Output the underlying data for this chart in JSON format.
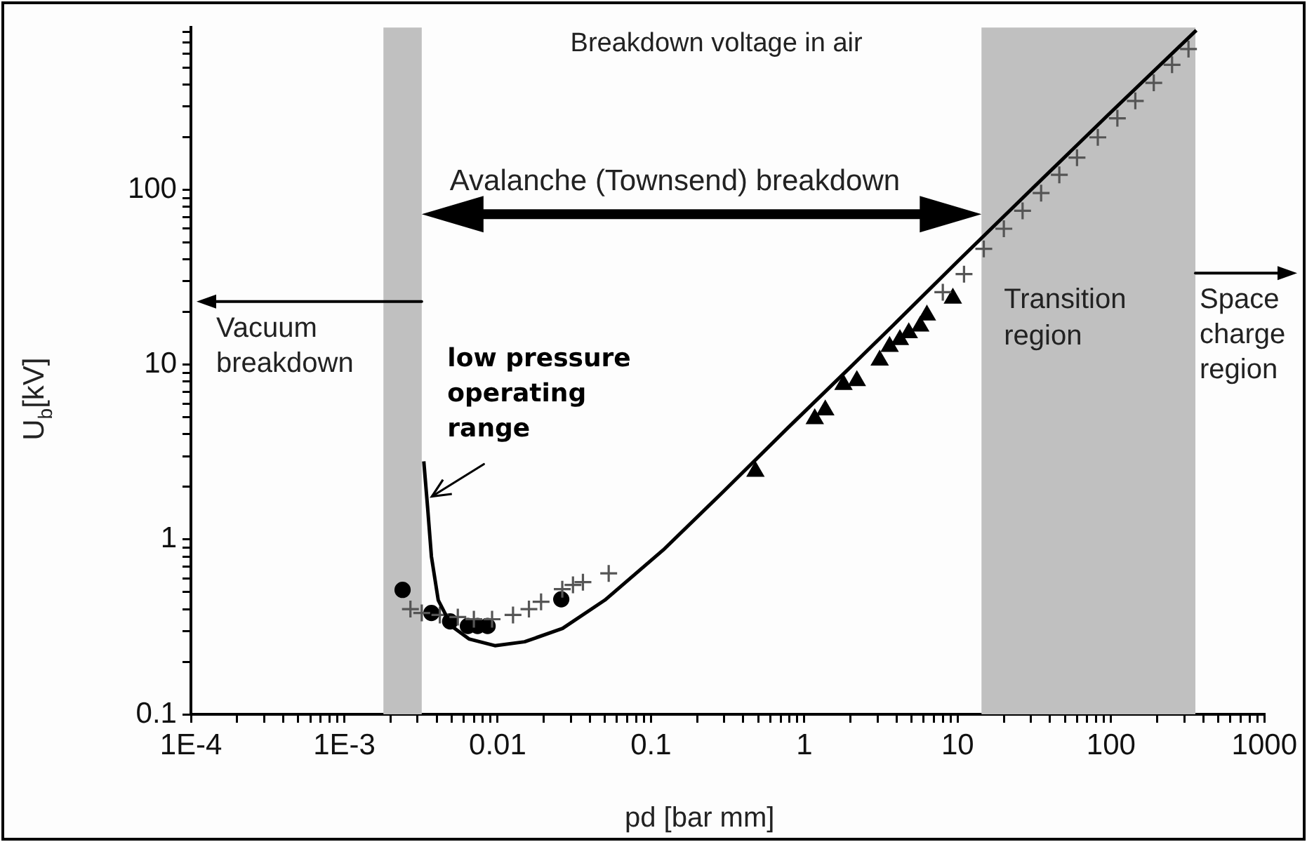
{
  "chart_data": {
    "type": "scatter",
    "title": "Breakdown voltage in air",
    "xlabel": "pd [bar mm]",
    "ylabel": "U$_{b}$[kV]",
    "log": "xy",
    "grid": false,
    "legend": false,
    "xlim": [
      0.0001,
      1000
    ],
    "ylim": [
      0.1,
      850
    ],
    "xticks": [
      {
        "value": 0.0001,
        "label": "1E-4"
      },
      {
        "value": 0.0002,
        "label": null
      },
      {
        "value": 0.0003,
        "label": null
      },
      {
        "value": 0.0004,
        "label": null
      },
      {
        "value": 0.0005,
        "label": null
      },
      {
        "value": 0.0006,
        "label": null
      },
      {
        "value": 0.0007,
        "label": null
      },
      {
        "value": 0.0008,
        "label": null
      },
      {
        "value": 0.0009,
        "label": null
      },
      {
        "value": 0.001,
        "label": "1E-3"
      },
      {
        "value": 0.002,
        "label": null
      },
      {
        "value": 0.003,
        "label": null
      },
      {
        "value": 0.004,
        "label": null
      },
      {
        "value": 0.005,
        "label": null
      },
      {
        "value": 0.006,
        "label": null
      },
      {
        "value": 0.007,
        "label": null
      },
      {
        "value": 0.008,
        "label": null
      },
      {
        "value": 0.009,
        "label": null
      },
      0.01,
      {
        "value": 0.02,
        "label": null
      },
      {
        "value": 0.03,
        "label": null
      },
      {
        "value": 0.04,
        "label": null
      },
      {
        "value": 0.05,
        "label": null
      },
      {
        "value": 0.06,
        "label": null
      },
      {
        "value": 0.07,
        "label": null
      },
      {
        "value": 0.08,
        "label": null
      },
      {
        "value": 0.09,
        "label": null
      },
      0.1,
      {
        "value": 0.2,
        "label": null
      },
      {
        "value": 0.3,
        "label": null
      },
      {
        "value": 0.4,
        "label": null
      },
      {
        "value": 0.5,
        "label": null
      },
      {
        "value": 0.6,
        "label": null
      },
      {
        "value": 0.7,
        "label": null
      },
      {
        "value": 0.8,
        "label": null
      },
      {
        "value": 0.9,
        "label": null
      },
      1,
      {
        "value": 2,
        "label": null
      },
      {
        "value": 3,
        "label": null
      },
      {
        "value": 4,
        "label": null
      },
      {
        "value": 5,
        "label": null
      },
      {
        "value": 6,
        "label": null
      },
      {
        "value": 7,
        "label": null
      },
      {
        "value": 8,
        "label": null
      },
      {
        "value": 9,
        "label": null
      },
      10,
      {
        "value": 20,
        "label": null
      },
      {
        "value": 30,
        "label": null
      },
      {
        "value": 40,
        "label": null
      },
      {
        "value": 50,
        "label": null
      },
      {
        "value": 60,
        "label": null
      },
      {
        "value": 70,
        "label": null
      },
      {
        "value": 80,
        "label": null
      },
      {
        "value": 90,
        "label": null
      },
      100,
      {
        "value": 200,
        "label": null
      },
      {
        "value": 300,
        "label": null
      },
      {
        "value": 400,
        "label": null
      },
      {
        "value": 500,
        "label": null
      },
      {
        "value": 600,
        "label": null
      },
      {
        "value": 700,
        "label": null
      },
      {
        "value": 800,
        "label": null
      },
      {
        "value": 900,
        "label": null
      },
      1000
    ],
    "yticks": [
      0.1,
      {
        "value": 0.2,
        "label": null
      },
      {
        "value": 0.3,
        "label": null
      },
      {
        "value": 0.4,
        "label": null
      },
      {
        "value": 0.5,
        "label": null
      },
      {
        "value": 0.6,
        "label": null
      },
      {
        "value": 0.7,
        "label": null
      },
      {
        "value": 0.8,
        "label": null
      },
      {
        "value": 0.9,
        "label": null
      },
      1,
      {
        "value": 2,
        "label": null
      },
      {
        "value": 3,
        "label": null
      },
      {
        "value": 4,
        "label": null
      },
      {
        "value": 5,
        "label": null
      },
      {
        "value": 6,
        "label": null
      },
      {
        "value": 7,
        "label": null
      },
      {
        "value": 8,
        "label": null
      },
      {
        "value": 9,
        "label": null
      },
      10,
      {
        "value": 20,
        "label": null
      },
      {
        "value": 30,
        "label": null
      },
      {
        "value": 40,
        "label": null
      },
      {
        "value": 50,
        "label": null
      },
      {
        "value": 60,
        "label": null
      },
      {
        "value": 70,
        "label": null
      },
      {
        "value": 80,
        "label": null
      },
      {
        "value": 90,
        "label": null
      },
      100,
      {
        "value": 200,
        "label": null
      },
      {
        "value": 300,
        "label": null
      },
      {
        "value": 400,
        "label": null
      },
      {
        "value": 500,
        "label": null
      },
      {
        "value": 600,
        "label": null
      },
      {
        "value": 700,
        "label": null
      },
      {
        "value": 800,
        "label": null
      }
    ],
    "bands": [
      {
        "axis": "x",
        "from": 0.0018,
        "to": 0.0032,
        "color": "#c0c0c0"
      },
      {
        "axis": "x",
        "from": 14.3,
        "to": 355,
        "label": "Transition region",
        "color": "#c0c0c0"
      }
    ],
    "series": [
      {
        "type": "line",
        "color": "#000000",
        "marker": "none",
        "x": [
          0.0033,
          0.0035,
          0.0037,
          0.0041,
          0.005,
          0.0065,
          0.0096,
          0.015,
          0.0265,
          0.05,
          0.12,
          0.3,
          0.78,
          2,
          4,
          10,
          30,
          100,
          360
        ],
        "values": [
          2.8,
          1.5,
          0.8,
          0.45,
          0.32,
          0.27,
          0.247,
          0.26,
          0.31,
          0.45,
          0.87,
          1.9,
          4.35,
          9.7,
          17.6,
          39,
          100,
          279,
          820
        ]
      },
      {
        "type": "scatter",
        "color": "#555555",
        "marker": "cross",
        "x": [
          0.0027,
          0.0032,
          0.0042,
          0.0055,
          0.007,
          0.0092,
          0.0126,
          0.016,
          0.0192,
          0.0264,
          0.031,
          0.036,
          0.053,
          8,
          11,
          14.8,
          20,
          26.5,
          35,
          46,
          60,
          82,
          110,
          144,
          190,
          250,
          320
        ],
        "values": [
          0.4,
          0.38,
          0.37,
          0.36,
          0.35,
          0.35,
          0.37,
          0.4,
          0.44,
          0.52,
          0.55,
          0.57,
          0.64,
          26,
          33,
          46,
          60,
          76,
          96,
          122,
          153,
          200,
          257,
          323,
          410,
          520,
          640
        ]
      },
      {
        "type": "scatter",
        "color": "#000000",
        "marker": "circle",
        "x": [
          0.0024,
          0.0037,
          0.0049,
          0.0064,
          0.0074,
          0.0086,
          0.026
        ],
        "values": [
          0.515,
          0.38,
          0.34,
          0.32,
          0.32,
          0.32,
          0.455
        ]
      },
      {
        "type": "scatter",
        "color": "#000000",
        "marker": "triangle",
        "x": [
          0.48,
          1.17,
          1.37,
          1.8,
          2.2,
          3.1,
          3.6,
          4.2,
          4.8,
          5.7,
          6.3,
          9.3
        ],
        "values": [
          2.45,
          4.9,
          5.5,
          7.7,
          8.1,
          10.6,
          12.7,
          13.9,
          15.2,
          16.6,
          19.2,
          24
        ]
      }
    ],
    "annotations": [
      {
        "text": "Vacuum breakdown",
        "x": 0.0032,
        "y": 23
      },
      "Avalanche (Townsend) breakdown",
      {
        "text": "low pressure operating range",
        "x": 0.0035,
        "y": 1.7
      },
      "Space charge region"
    ]
  }
}
